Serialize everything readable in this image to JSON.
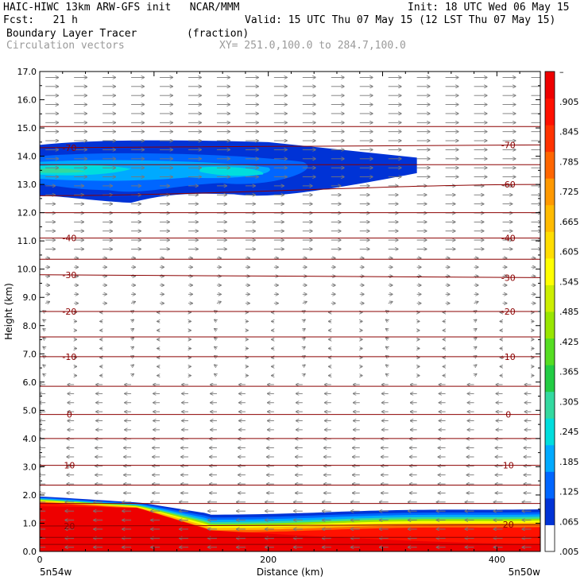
{
  "header": {
    "line1_left": "HAIC-HIWC 13km ARW-GFS init   NCAR/MMM",
    "line1_right": "Init: 18 UTC Wed 06 May 15",
    "line2_left": "Fcst:   21 h",
    "line2_right": "Valid: 15 UTC Thu 07 May 15 (12 LST Thu 07 May 15)",
    "line3_left": "Boundary Layer Tracer        (fraction)",
    "line4_left": "Circulation vectors",
    "line4_right": "XY= 251.0,100.0 to 284.7,100.0"
  },
  "chart_data": {
    "type": "heatmap",
    "title": "Boundary Layer Tracer",
    "units": "(fraction)",
    "xlabel": "Distance (km)",
    "ylabel": "Height (km)",
    "xlim": [
      0,
      438
    ],
    "ylim": [
      0,
      17
    ],
    "x_ticks": [
      0,
      200,
      400
    ],
    "y_ticks": [
      "0.0",
      "1.0",
      "2.0",
      "3.0",
      "4.0",
      "5.0",
      "6.0",
      "7.0",
      "8.0",
      "9.0",
      "10.0",
      "11.0",
      "12.0",
      "13.0",
      "14.0",
      "15.0",
      "16.0",
      "17.0"
    ],
    "x_end_labels": {
      "left": "5n54w",
      "right": "5n50w"
    },
    "colorbar": {
      "labels": [
        ".005",
        ".065",
        ".125",
        ".185",
        ".245",
        ".305",
        ".365",
        ".425",
        ".485",
        ".545",
        ".605",
        ".665",
        ".725",
        ".785",
        ".845",
        ".905",
        "–"
      ],
      "colors": [
        "#ffffff",
        "#0033d6",
        "#0066ff",
        "#00aaff",
        "#00dddd",
        "#33d9a0",
        "#22cc44",
        "#55dd22",
        "#99e600",
        "#ccee00",
        "#ffff00",
        "#ffdd00",
        "#ffbb00",
        "#ff9900",
        "#ff6600",
        "#ff3300",
        "#ff1100",
        "#ee0000"
      ]
    },
    "temperature_contours": [
      {
        "value": "-70",
        "y_left": 14.3,
        "y_right": 14.4,
        "label_left": "-70",
        "label_right": "-70"
      },
      {
        "value": "-60",
        "y_left": 12.6,
        "y_right": 13.0,
        "label_right": "-60"
      },
      {
        "value": "-40",
        "y_left": 11.1,
        "y_right": 11.1,
        "label_left": "-40",
        "label_right": "-40"
      },
      {
        "value": "-30",
        "y_left": 9.8,
        "y_right": 9.7,
        "label_left": "-30",
        "label_right": "-30"
      },
      {
        "value": "-20",
        "y_left": 8.5,
        "y_right": 8.5,
        "label_left": "-20",
        "label_right": "-20"
      },
      {
        "value": "-10",
        "y_left": 6.9,
        "y_right": 6.9,
        "label_left": "-10",
        "label_right": "-10"
      },
      {
        "value": "0",
        "y_left": 4.85,
        "y_right": 4.85,
        "label_left": "0",
        "label_right": "0"
      },
      {
        "value": "10",
        "y_left": 3.05,
        "y_right": 3.05,
        "label_left": "10",
        "label_right": "10"
      },
      {
        "value": "20",
        "y_left": 0.9,
        "y_right": 0.95,
        "label_left": "20",
        "label_right": "20"
      }
    ],
    "extra_contour_lines_y": [
      15.05,
      13.7,
      12.0,
      10.35,
      7.6,
      5.85,
      4.0,
      2.35,
      1.7,
      0.5,
      0.25
    ],
    "upper_tracer_layer": {
      "x_range": [
        0,
        330
      ],
      "y_range": [
        12.4,
        14.4
      ],
      "core_value": 0.25
    },
    "boundary_layer": {
      "top_left_km": 1.95,
      "top_right_km": 1.3,
      "core_value": 0.99
    }
  }
}
